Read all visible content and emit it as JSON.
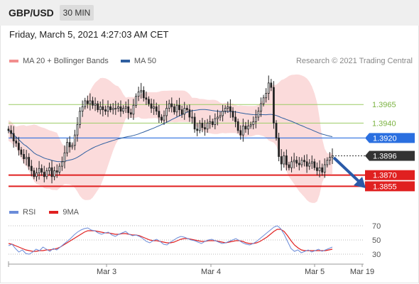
{
  "header": {
    "symbol": "GBP/USD",
    "timeframe": "30 MIN",
    "datetime": "Friday, March 5, 2021 4:27:03 AM CET"
  },
  "legend_main": [
    {
      "label": "MA 20 + Bollinger Bands",
      "color": "#f28e8e"
    },
    {
      "label": "MA 50",
      "color": "#2f5fa0"
    }
  ],
  "legend_rsi": [
    {
      "label": "RSI",
      "color": "#6b8cd9"
    },
    {
      "label": "9MA",
      "color": "#e02020"
    }
  ],
  "copyright": "Research © 2021 Trading Central",
  "chart_data": {
    "type": "candlestick",
    "x_labels": [
      "Mar 3",
      "Mar 4",
      "Mar 5",
      "Mar 19"
    ],
    "y_range": [
      1.3842,
      1.4012
    ],
    "levels": [
      {
        "value": 1.3965,
        "label": "1.3965",
        "kind": "resistance",
        "color": "#9ccc65"
      },
      {
        "value": 1.394,
        "label": "1.3940",
        "kind": "resistance",
        "color": "#9ccc65"
      },
      {
        "value": 1.392,
        "label": "1.3920",
        "kind": "pivot",
        "color": "#2a6fe0"
      },
      {
        "value": 1.3896,
        "label": "1.3896",
        "kind": "last_price",
        "color": "#333333"
      },
      {
        "value": 1.387,
        "label": "1.3870",
        "kind": "support",
        "color": "#e02020"
      },
      {
        "value": 1.3855,
        "label": "1.3855",
        "kind": "support",
        "color": "#e02020"
      }
    ],
    "closes": [
      1.393,
      1.3926,
      1.3916,
      1.3913,
      1.3904,
      1.3898,
      1.3892,
      1.3894,
      1.3882,
      1.3876,
      1.3868,
      1.3873,
      1.3879,
      1.3874,
      1.3868,
      1.3876,
      1.388,
      1.3868,
      1.3876,
      1.3874,
      1.3882,
      1.3888,
      1.39,
      1.3914,
      1.3908,
      1.391,
      1.3924,
      1.3938,
      1.3956,
      1.3962,
      1.397,
      1.3966,
      1.397,
      1.3964,
      1.3966,
      1.3958,
      1.3962,
      1.3958,
      1.3956,
      1.3962,
      1.3958,
      1.396,
      1.396,
      1.3962,
      1.3956,
      1.396,
      1.3962,
      1.3954,
      1.3952,
      1.3964,
      1.3976,
      1.3982,
      1.3984,
      1.3974,
      1.3972,
      1.3966,
      1.396,
      1.3962,
      1.3956,
      1.3948,
      1.3944,
      1.395,
      1.396,
      1.3966,
      1.3962,
      1.3955,
      1.3964,
      1.3958,
      1.3952,
      1.396,
      1.3958,
      1.3948,
      1.3948,
      1.3932,
      1.393,
      1.394,
      1.3934,
      1.3932,
      1.394,
      1.3942,
      1.3938,
      1.3946,
      1.3948,
      1.395,
      1.3956,
      1.396,
      1.3962,
      1.3956,
      1.3948,
      1.3942,
      1.393,
      1.3924,
      1.3936,
      1.3932,
      1.3936,
      1.3938,
      1.3942,
      1.3948,
      1.3956,
      1.3966,
      1.3974,
      1.398,
      1.3994,
      1.3988,
      1.394,
      1.392,
      1.3895,
      1.3885,
      1.3896,
      1.3884,
      1.388,
      1.3888,
      1.389,
      1.3886,
      1.3884,
      1.389,
      1.3888,
      1.3882,
      1.3886,
      1.3888,
      1.388,
      1.3876,
      1.388,
      1.3874,
      1.3884,
      1.389,
      1.3894,
      1.3896
    ],
    "rsi": {
      "y_range": [
        20,
        80
      ],
      "levels": [
        70,
        50,
        30
      ],
      "rsi_values": [
        42,
        44,
        38,
        33,
        36,
        31,
        30,
        33,
        37,
        35,
        40,
        37,
        34,
        38,
        36,
        40,
        44,
        48,
        52,
        57,
        61,
        64,
        66,
        67,
        64,
        63,
        60,
        58,
        60,
        61,
        57,
        55,
        58,
        60,
        62,
        58,
        56,
        57,
        55,
        52,
        48,
        46,
        49,
        51,
        48,
        44,
        43,
        47,
        50,
        53,
        55,
        54,
        52,
        50,
        49,
        47,
        45,
        48,
        50,
        51,
        49,
        47,
        45,
        46,
        48,
        50,
        52,
        49,
        46,
        44,
        43,
        45,
        48,
        52,
        56,
        60,
        64,
        68,
        70,
        66,
        58,
        48,
        38,
        34,
        36,
        32,
        34,
        36,
        33,
        35,
        37,
        34,
        36,
        38,
        40
      ],
      "ma_values": [
        45,
        44,
        42,
        40,
        38,
        36,
        35,
        34,
        34,
        35,
        35,
        36,
        36,
        37,
        38,
        40,
        43,
        46,
        49,
        52,
        55,
        58,
        61,
        63,
        63,
        63,
        62,
        61,
        60,
        60,
        59,
        58,
        58,
        59,
        59,
        58,
        57,
        57,
        56,
        54,
        52,
        50,
        49,
        49,
        48,
        47,
        46,
        46,
        47,
        49,
        51,
        52,
        52,
        51,
        50,
        49,
        48,
        48,
        49,
        49,
        49,
        48,
        47,
        46,
        47,
        48,
        49,
        49,
        48,
        46,
        45,
        45,
        46,
        48,
        51,
        54,
        58,
        62,
        65,
        65,
        62,
        56,
        49,
        43,
        39,
        36,
        35,
        35,
        35,
        35,
        35,
        35,
        35,
        36,
        37
      ]
    }
  }
}
